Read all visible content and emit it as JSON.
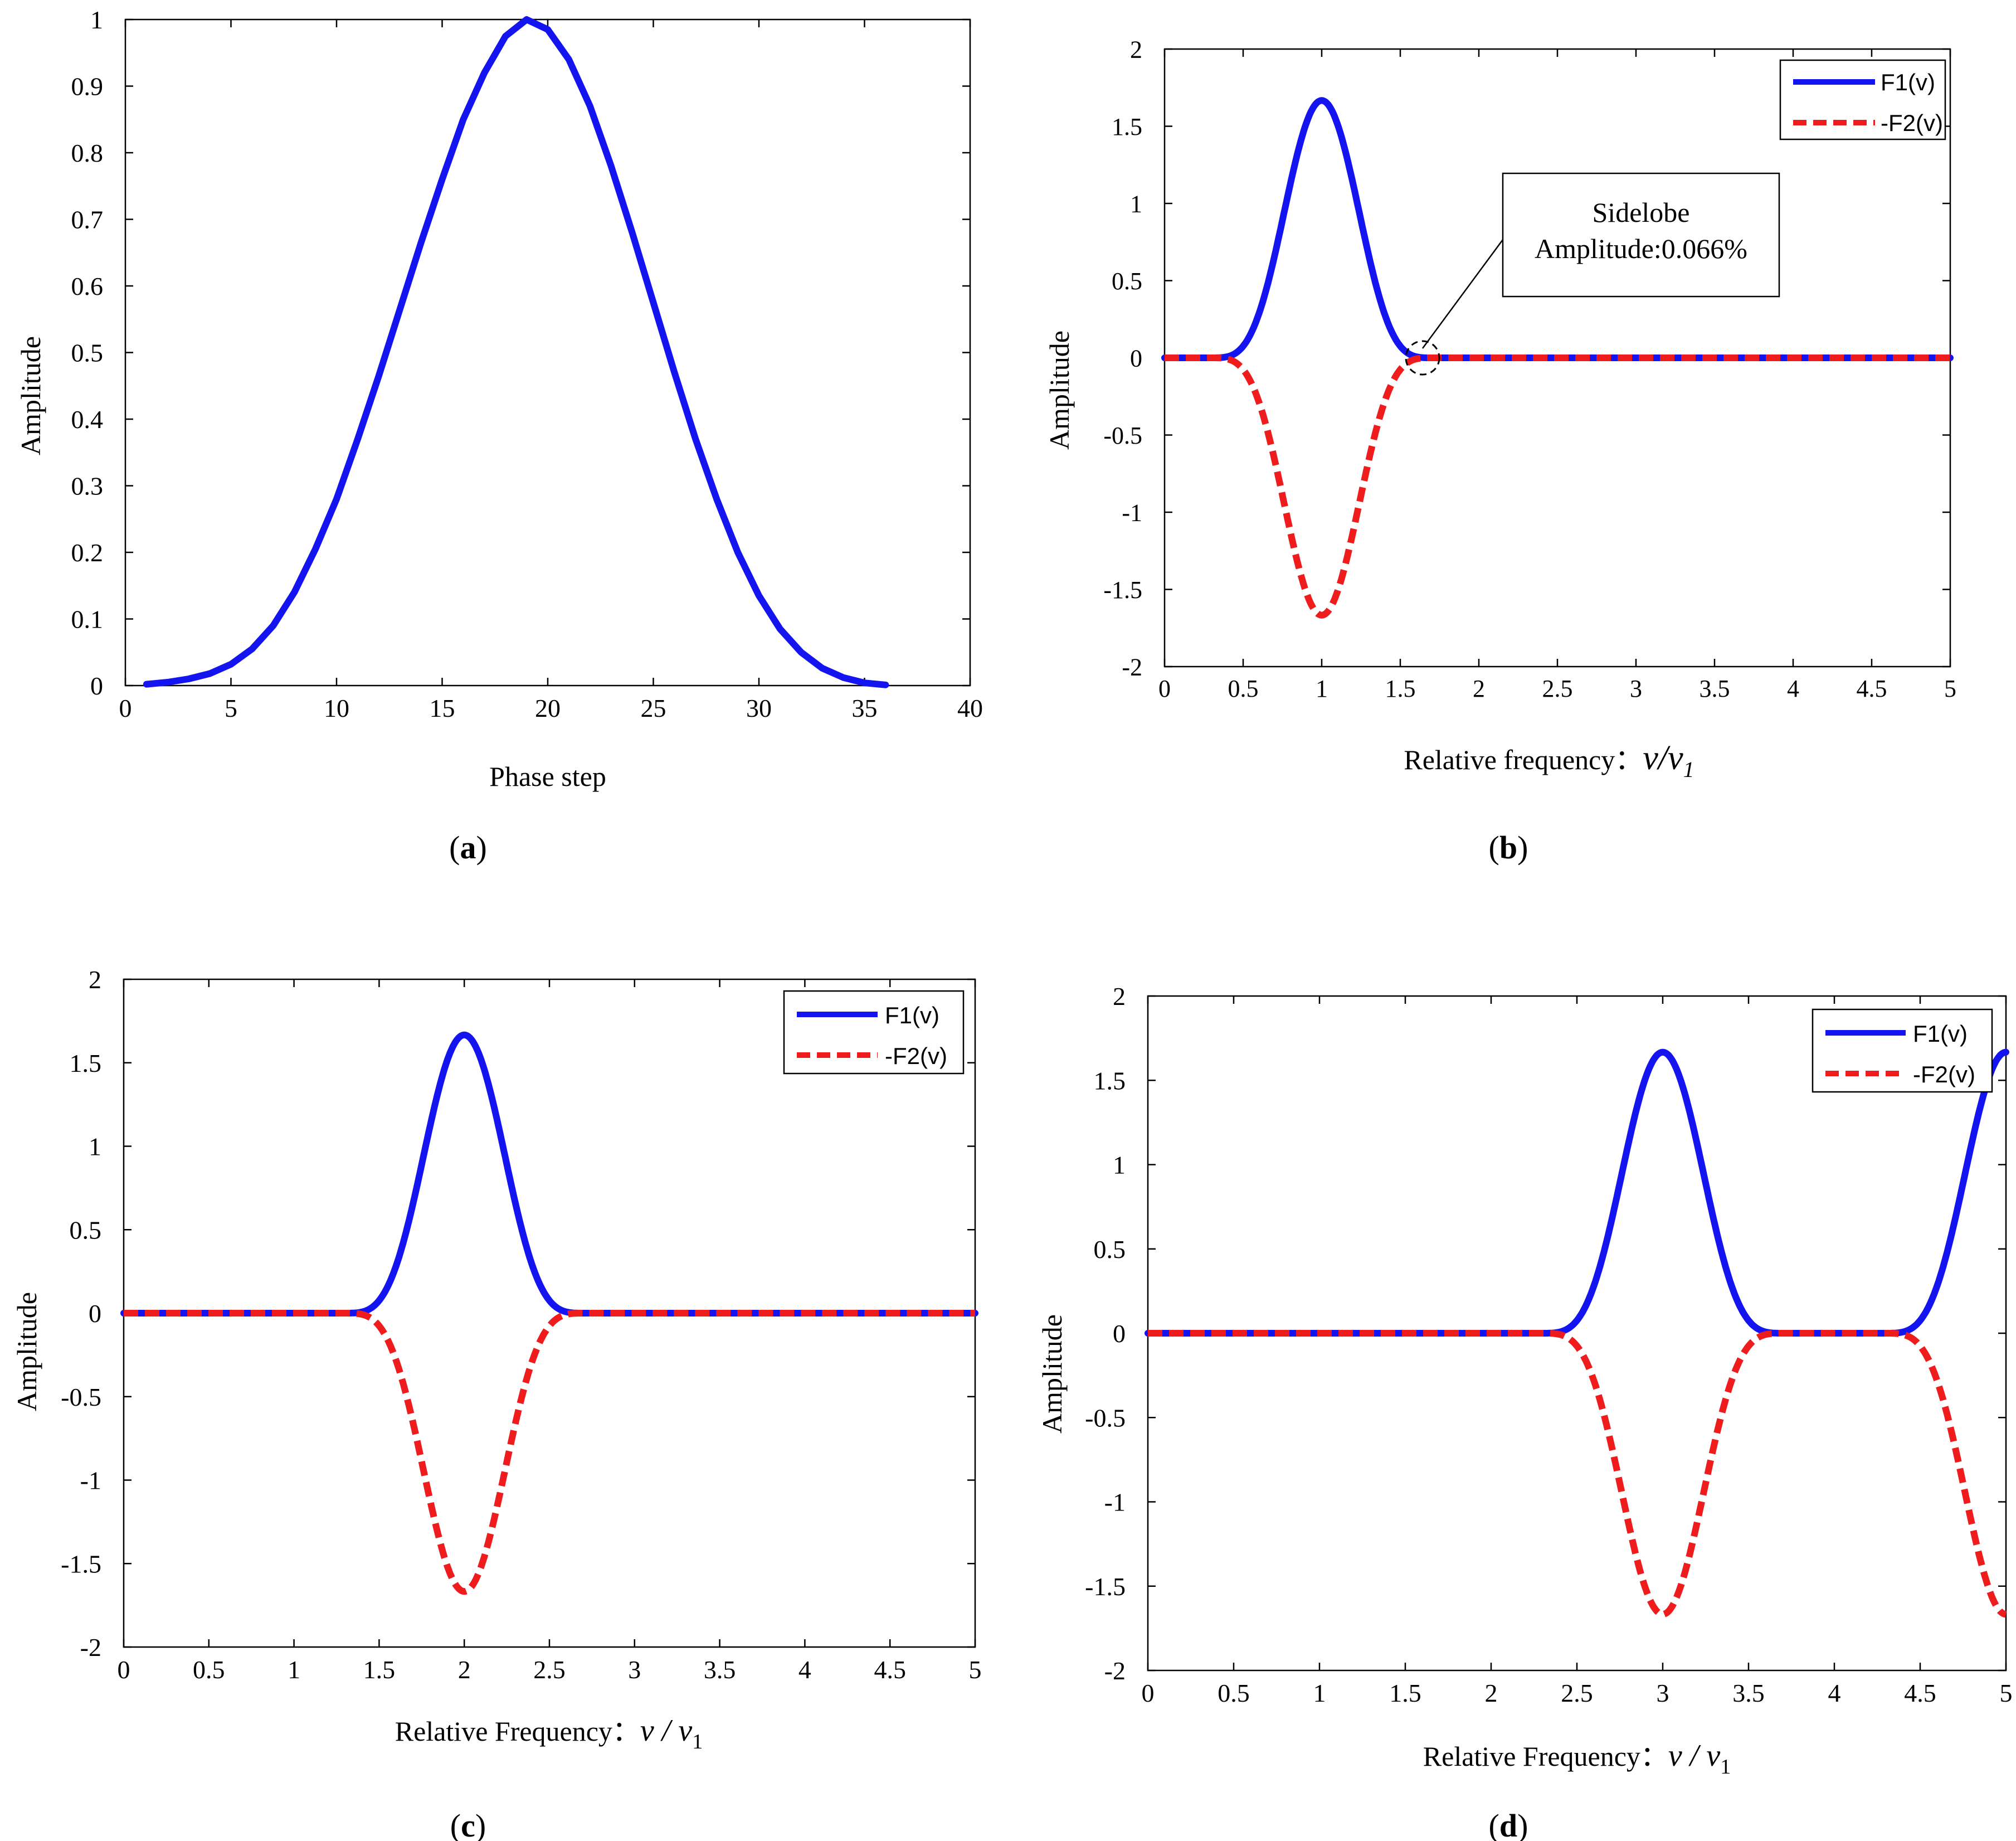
{
  "chart_data": [
    {
      "id": "a",
      "type": "line",
      "panel_label": "a",
      "xlabel": "Phase step",
      "ylabel": "Amplitude",
      "xlim": [
        0,
        40
      ],
      "ylim": [
        0,
        1
      ],
      "xticks": [
        "0",
        "5",
        "10",
        "15",
        "20",
        "25",
        "30",
        "35",
        "40"
      ],
      "xtick_values": [
        0,
        5,
        10,
        15,
        20,
        25,
        30,
        35,
        40
      ],
      "yticks": [
        "0",
        "0.1",
        "0.2",
        "0.3",
        "0.4",
        "0.5",
        "0.6",
        "0.7",
        "0.8",
        "0.9",
        "1"
      ],
      "ytick_values": [
        0,
        0.1,
        0.2,
        0.3,
        0.4,
        0.5,
        0.6,
        0.7,
        0.8,
        0.9,
        1
      ],
      "series": [
        {
          "name": "Amplitude",
          "color": "#1414f0",
          "style": "solid",
          "x": [
            1,
            2,
            3,
            4,
            5,
            6,
            7,
            8,
            9,
            10,
            11,
            12,
            13,
            14,
            15,
            16,
            17,
            18,
            19,
            20,
            21,
            22,
            23,
            24,
            25,
            26,
            27,
            28,
            29,
            30,
            31,
            32,
            33,
            34,
            35,
            36
          ],
          "values": [
            0.002,
            0.005,
            0.01,
            0.018,
            0.032,
            0.055,
            0.09,
            0.14,
            0.205,
            0.28,
            0.37,
            0.465,
            0.565,
            0.665,
            0.76,
            0.85,
            0.92,
            0.975,
            1.0,
            0.985,
            0.94,
            0.87,
            0.78,
            0.68,
            0.575,
            0.47,
            0.37,
            0.28,
            0.2,
            0.135,
            0.085,
            0.05,
            0.026,
            0.012,
            0.004,
            0.001
          ]
        }
      ]
    },
    {
      "id": "b",
      "type": "line",
      "panel_label": "b",
      "xlabel": "Relative frequency：",
      "xlabel_math_main": "ν/ν",
      "xlabel_math_sub": "1",
      "ylabel": "Amplitude",
      "xlim": [
        0,
        5
      ],
      "ylim": [
        -2,
        2
      ],
      "xticks": [
        "0",
        "0.5",
        "1",
        "1.5",
        "2",
        "2.5",
        "3",
        "3.5",
        "4",
        "4.5",
        "5"
      ],
      "xtick_values": [
        0,
        0.5,
        1,
        1.5,
        2,
        2.5,
        3,
        3.5,
        4,
        4.5,
        5
      ],
      "yticks": [
        "-2",
        "-1.5",
        "-1",
        "-0.5",
        "0",
        "0.5",
        "1",
        "1.5",
        "2"
      ],
      "ytick_values": [
        -2,
        -1.5,
        -1,
        -0.5,
        0,
        0.5,
        1,
        1.5,
        2
      ],
      "legend": [
        "F1(v)",
        "-F2(v)"
      ],
      "annotation": {
        "line1": "Sidelobe",
        "line2": "Amplitude:0.066%",
        "x": 1.64,
        "y": 0
      },
      "series": [
        {
          "name": "F1(v)",
          "color": "#1414f0",
          "style": "solid",
          "peak_centers": [
            1
          ],
          "peak_amplitude": 1.667,
          "half_width": 0.72
        },
        {
          "name": "-F2(v)",
          "color": "#ee1c1c",
          "style": "dashed",
          "peak_centers": [
            1
          ],
          "peak_amplitude": -1.667,
          "half_width": 0.72
        }
      ]
    },
    {
      "id": "c",
      "type": "line",
      "panel_label": "c",
      "xlabel": "Relative Frequency：",
      "xlabel_math_main": "ν / ν",
      "xlabel_math_sub": "1",
      "ylabel": "Amplitude",
      "xlim": [
        0,
        5
      ],
      "ylim": [
        -2,
        2
      ],
      "xticks": [
        "0",
        "0.5",
        "1",
        "1.5",
        "2",
        "2.5",
        "3",
        "3.5",
        "4",
        "4.5",
        "5"
      ],
      "xtick_values": [
        0,
        0.5,
        1,
        1.5,
        2,
        2.5,
        3,
        3.5,
        4,
        4.5,
        5
      ],
      "yticks": [
        "-2",
        "-1.5",
        "-1",
        "-0.5",
        "0",
        "0.5",
        "1",
        "1.5",
        "2"
      ],
      "ytick_values": [
        -2,
        -1.5,
        -1,
        -0.5,
        0,
        0.5,
        1,
        1.5,
        2
      ],
      "legend": [
        "F1(v)",
        "-F2(v)"
      ],
      "series": [
        {
          "name": "F1(v)",
          "color": "#1414f0",
          "style": "solid",
          "peak_centers": [
            2
          ],
          "peak_amplitude": 1.667,
          "half_width": 0.72
        },
        {
          "name": "-F2(v)",
          "color": "#ee1c1c",
          "style": "dashed",
          "peak_centers": [
            2
          ],
          "peak_amplitude": -1.667,
          "half_width": 0.72
        }
      ]
    },
    {
      "id": "d",
      "type": "line",
      "panel_label": "d",
      "xlabel": "Relative Frequency：",
      "xlabel_math_main": "ν / ν",
      "xlabel_math_sub": "1",
      "ylabel": "Amplitude",
      "xlim": [
        0,
        5
      ],
      "ylim": [
        -2,
        2
      ],
      "xticks": [
        "0",
        "0.5",
        "1",
        "1.5",
        "2",
        "2.5",
        "3",
        "3.5",
        "4",
        "4.5",
        "5"
      ],
      "xtick_values": [
        0,
        0.5,
        1,
        1.5,
        2,
        2.5,
        3,
        3.5,
        4,
        4.5,
        5
      ],
      "yticks": [
        "-2",
        "-1.5",
        "-1",
        "-0.5",
        "0",
        "0.5",
        "1",
        "1.5",
        "2"
      ],
      "ytick_values": [
        -2,
        -1.5,
        -1,
        -0.5,
        0,
        0.5,
        1,
        1.5,
        2
      ],
      "legend": [
        "F1(v)",
        "-F2(v)"
      ],
      "series": [
        {
          "name": "F1(v)",
          "color": "#1414f0",
          "style": "solid",
          "peak_centers": [
            3,
            5
          ],
          "peak_amplitude": 1.667,
          "half_width": 0.72
        },
        {
          "name": "-F2(v)",
          "color": "#ee1c1c",
          "style": "dashed",
          "peak_centers": [
            3,
            5
          ],
          "peak_amplitude": -1.667,
          "half_width": 0.72
        }
      ]
    }
  ]
}
